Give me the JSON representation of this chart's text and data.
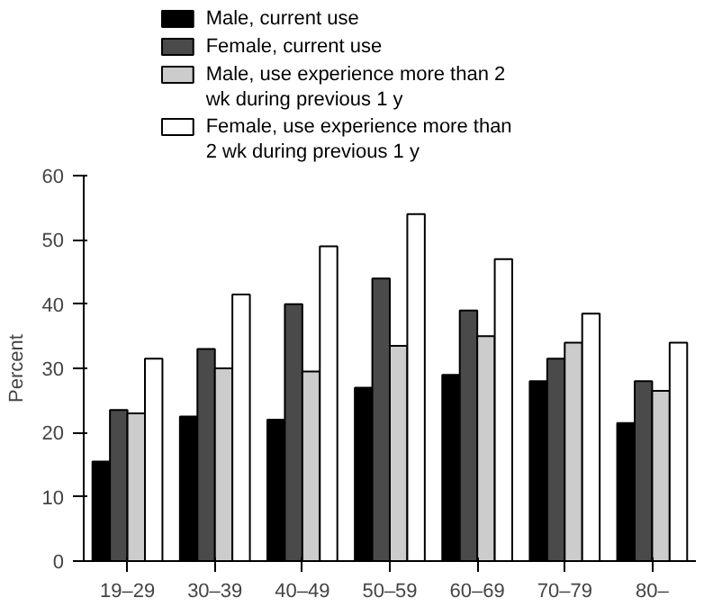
{
  "chart_data": {
    "type": "bar",
    "ylabel": "Percent",
    "categories": [
      "19–29",
      "30–39",
      "40–49",
      "50–59",
      "60–69",
      "70–79",
      "80–"
    ],
    "series": [
      {
        "name": "Male, current use",
        "color": "#000000",
        "values": [
          15.5,
          22.5,
          22,
          27,
          29,
          28,
          21.5
        ]
      },
      {
        "name": "Female, current use",
        "color": "#4a4a4a",
        "values": [
          23.5,
          33,
          40,
          44,
          39,
          31.5,
          28
        ]
      },
      {
        "name": "Male, use experience more than 2 wk during previous 1 y",
        "color": "#cccccc",
        "values": [
          23,
          30,
          29.5,
          33.5,
          35,
          34,
          26.5
        ]
      },
      {
        "name": "Female, use experience more than 2 wk during previous 1 y",
        "color": "#ffffff",
        "values": [
          31.5,
          41.5,
          49,
          54,
          47,
          38.5,
          34
        ]
      }
    ],
    "ylim": [
      0,
      60
    ],
    "yticks": [
      0,
      10,
      20,
      30,
      40,
      50,
      60
    ],
    "grid": false,
    "legend": "top left"
  }
}
